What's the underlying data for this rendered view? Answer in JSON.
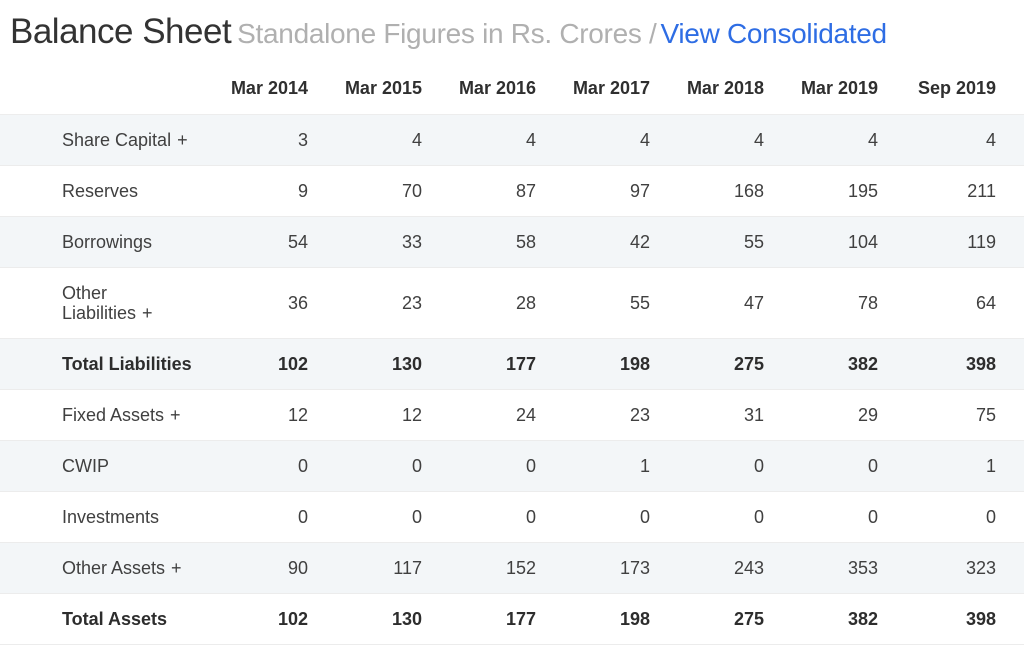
{
  "header": {
    "title": "Balance Sheet",
    "subtitle": "Standalone Figures in Rs. Crores /",
    "link_label": "View Consolidated"
  },
  "colors": {
    "link": "#2e6de4",
    "row_stripe": "#f3f6f8",
    "row_border": "#ececec",
    "total_row_border": "#b9bfc4",
    "title_text": "#333333",
    "subtitle_text": "#b0b0b0"
  },
  "table": {
    "columns": [
      "Mar 2014",
      "Mar 2015",
      "Mar 2016",
      "Mar 2017",
      "Mar 2018",
      "Mar 2019",
      "Sep 2019"
    ],
    "rows": [
      {
        "label": "Share Capital",
        "suffix": "+",
        "total": false,
        "values": [
          3,
          4,
          4,
          4,
          4,
          4,
          4
        ]
      },
      {
        "label": "Reserves",
        "suffix": "",
        "total": false,
        "values": [
          9,
          70,
          87,
          97,
          168,
          195,
          211
        ]
      },
      {
        "label": "Borrowings",
        "suffix": "",
        "total": false,
        "values": [
          54,
          33,
          58,
          42,
          55,
          104,
          119
        ]
      },
      {
        "label": "Other Liabilities",
        "suffix": "+",
        "total": false,
        "values": [
          36,
          23,
          28,
          55,
          47,
          78,
          64
        ]
      },
      {
        "label": "Total Liabilities",
        "suffix": "",
        "total": true,
        "values": [
          102,
          130,
          177,
          198,
          275,
          382,
          398
        ]
      },
      {
        "label": "Fixed Assets",
        "suffix": "+",
        "total": false,
        "values": [
          12,
          12,
          24,
          23,
          31,
          29,
          75
        ]
      },
      {
        "label": "CWIP",
        "suffix": "",
        "total": false,
        "values": [
          0,
          0,
          0,
          1,
          0,
          0,
          1
        ]
      },
      {
        "label": "Investments",
        "suffix": "",
        "total": false,
        "values": [
          0,
          0,
          0,
          0,
          0,
          0,
          0
        ]
      },
      {
        "label": "Other Assets",
        "suffix": "+",
        "total": false,
        "values": [
          90,
          117,
          152,
          173,
          243,
          353,
          323
        ]
      },
      {
        "label": "Total Assets",
        "suffix": "",
        "total": true,
        "values": [
          102,
          130,
          177,
          198,
          275,
          382,
          398
        ]
      }
    ]
  }
}
